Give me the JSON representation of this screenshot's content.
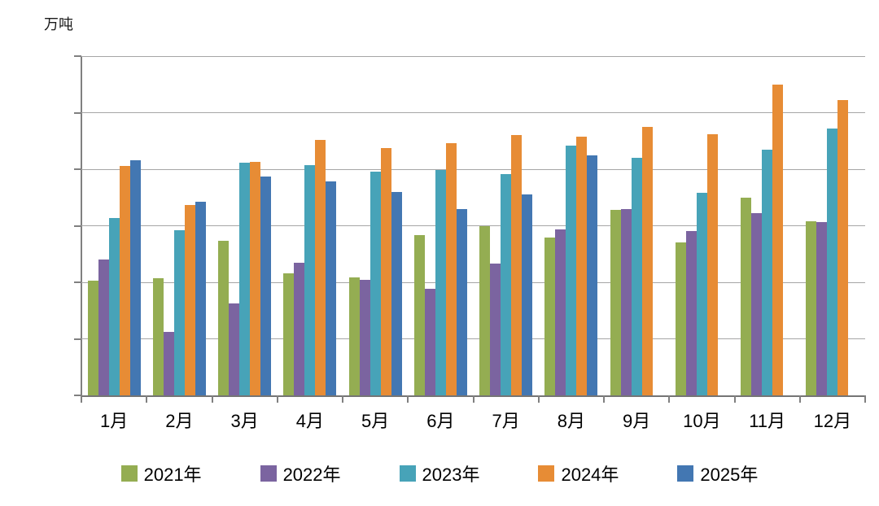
{
  "chart_data": {
    "type": "bar",
    "title": "",
    "unit_label": "万吨",
    "xlabel": "",
    "ylabel": "万吨",
    "ylim": [
      0,
      6000
    ],
    "ytick_step": 1000,
    "grid": "horizontal",
    "legend_position": "bottom",
    "categories": [
      "1月",
      "2月",
      "3月",
      "4月",
      "5月",
      "6月",
      "7月",
      "8月",
      "9月",
      "10月",
      "11月",
      "12月"
    ],
    "series": [
      {
        "name": "2021年",
        "color": "#94AD52",
        "values": [
          2030,
          2070,
          2730,
          2160,
          2090,
          2840,
          3000,
          2790,
          3280,
          2700,
          3490,
          3080
        ]
      },
      {
        "name": "2022年",
        "color": "#7B64A0",
        "values": [
          2400,
          1120,
          1630,
          2340,
          2050,
          1890,
          2330,
          2930,
          3300,
          2900,
          3220,
          3060
        ]
      },
      {
        "name": "2023年",
        "color": "#47A3B8",
        "values": [
          3130,
          2920,
          4110,
          4070,
          3950,
          3990,
          3910,
          4420,
          4200,
          3590,
          4340,
          4720
        ]
      },
      {
        "name": "2024年",
        "color": "#E78C35",
        "values": [
          4060,
          3370,
          4130,
          4520,
          4370,
          4460,
          4610,
          4580,
          4750,
          4620,
          5500,
          5230
        ]
      },
      {
        "name": "2025年",
        "color": "#4377B2",
        "values": [
          4160,
          3430,
          3870,
          3780,
          3600,
          3300,
          3560,
          4250,
          null,
          null,
          null,
          null
        ]
      }
    ]
  }
}
